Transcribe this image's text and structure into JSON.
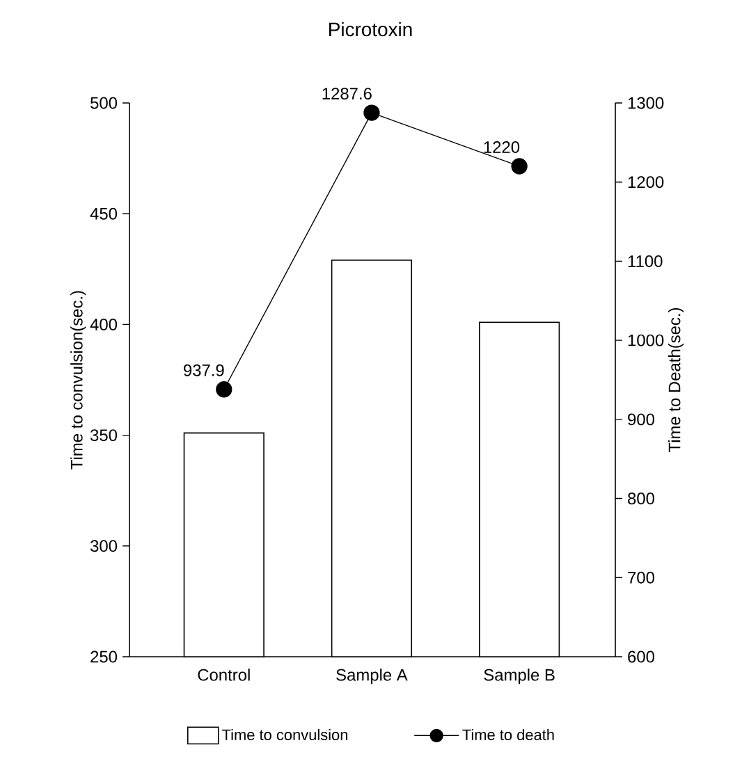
{
  "chart_data": {
    "type": "bar",
    "title": "Picrotoxin",
    "ylabel": "Time to convulsion(sec.)",
    "y2label": "Time to Death(sec.)",
    "categories": [
      "Control",
      "Sample A",
      "Sample B"
    ],
    "series": [
      {
        "name": "Time to convulsion",
        "color": "#ffffff",
        "values": [
          351,
          429,
          401
        ]
      },
      {
        "name": "Time to death",
        "type": "line",
        "axis": "y2",
        "color": "#000000",
        "values": [
          937.9,
          1287.6,
          1220
        ],
        "value_labels": [
          "937.9",
          "1287.6",
          "1220"
        ]
      }
    ],
    "ylim": [
      250,
      500
    ],
    "yticks": [
      250,
      300,
      350,
      400,
      450,
      500
    ],
    "y2lim": [
      600,
      1300
    ],
    "y2ticks": [
      600,
      700,
      800,
      900,
      1000,
      1100,
      1200,
      1300
    ],
    "legend": "bottom",
    "marker": "circle",
    "line_style": "solid"
  }
}
